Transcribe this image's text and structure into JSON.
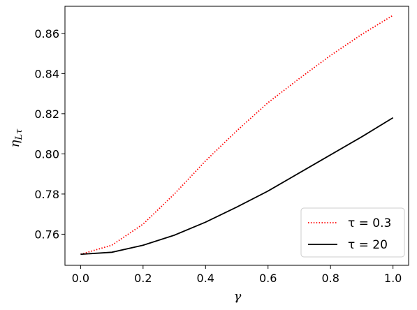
{
  "chart_data": {
    "type": "line",
    "title": "",
    "xlabel": "γ",
    "ylabel_main": "η",
    "ylabel_sub": "Lτ",
    "xlim": [
      -0.05,
      1.05
    ],
    "ylim": [
      0.7445,
      0.8735
    ],
    "xticks": [
      0.0,
      0.2,
      0.4,
      0.6,
      0.8,
      1.0
    ],
    "xtick_labels": [
      "0.0",
      "0.2",
      "0.4",
      "0.6",
      "0.8",
      "1.0"
    ],
    "yticks": [
      0.76,
      0.78,
      0.8,
      0.82,
      0.84,
      0.86
    ],
    "ytick_labels": [
      "0.76",
      "0.78",
      "0.80",
      "0.82",
      "0.84",
      "0.86"
    ],
    "x": [
      0.0,
      0.1,
      0.2,
      0.3,
      0.4,
      0.5,
      0.6,
      0.7,
      0.8,
      0.9,
      1.0
    ],
    "series": [
      {
        "name": "τ = 0.3",
        "color": "#ff0000",
        "style": "dotted",
        "values": [
          0.75,
          0.7545,
          0.765,
          0.78,
          0.7965,
          0.8115,
          0.8255,
          0.8375,
          0.849,
          0.8595,
          0.869
        ]
      },
      {
        "name": "τ = 20",
        "color": "#000000",
        "style": "solid",
        "values": [
          0.75,
          0.751,
          0.7545,
          0.7595,
          0.766,
          0.7735,
          0.7815,
          0.7905,
          0.7995,
          0.8085,
          0.818
        ]
      }
    ],
    "legend_position": "lower-right",
    "grid": false
  }
}
